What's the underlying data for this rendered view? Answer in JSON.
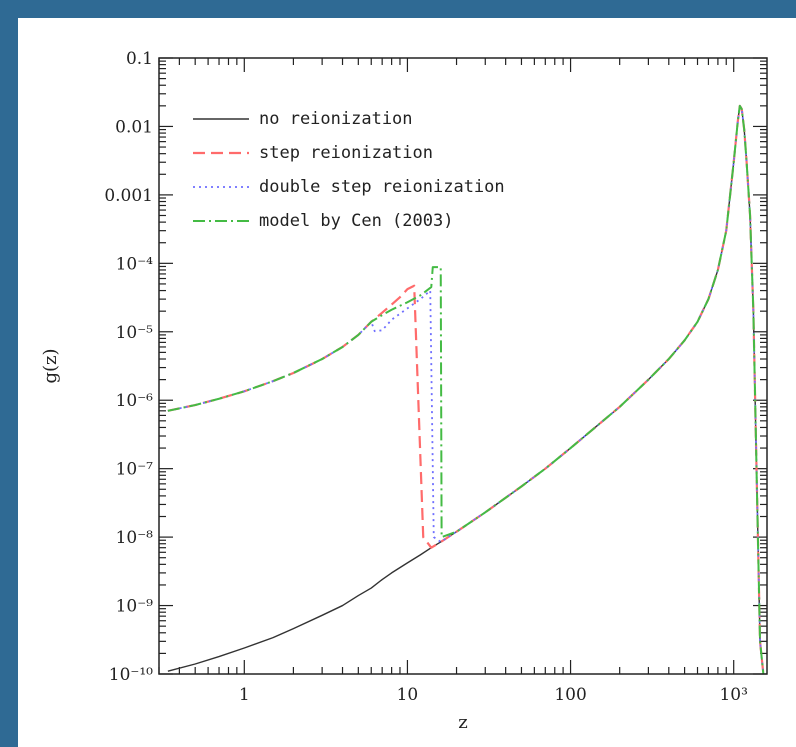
{
  "chart_data": {
    "type": "line",
    "xlabel": "z",
    "ylabel": "g(z)",
    "xscale": "log",
    "yscale": "log",
    "xlim": [
      0.3,
      1600
    ],
    "ylim": [
      1e-10,
      0.1
    ],
    "x_ticks": [
      {
        "value": 1,
        "label": "1"
      },
      {
        "value": 10,
        "label": "10"
      },
      {
        "value": 100,
        "label": "100"
      },
      {
        "value": 1000,
        "label": "10³"
      }
    ],
    "y_ticks": [
      {
        "value": 0.1,
        "label": "0.1"
      },
      {
        "value": 0.01,
        "label": "0.01"
      },
      {
        "value": 0.001,
        "label": "0.001"
      },
      {
        "value": 0.0001,
        "label": "10⁻⁴"
      },
      {
        "value": 1e-05,
        "label": "10⁻⁵"
      },
      {
        "value": 1e-06,
        "label": "10⁻⁶"
      },
      {
        "value": 1e-07,
        "label": "10⁻⁷"
      },
      {
        "value": 1e-08,
        "label": "10⁻⁸"
      },
      {
        "value": 1e-09,
        "label": "10⁻⁹"
      },
      {
        "value": 1e-10,
        "label": "10⁻¹⁰"
      }
    ],
    "legend_position": "top-left",
    "series": [
      {
        "name": "no reionization",
        "color": "#333333",
        "dash": "solid",
        "points": [
          [
            0.34,
            1.1e-10
          ],
          [
            0.5,
            1.4e-10
          ],
          [
            0.7,
            1.8e-10
          ],
          [
            1,
            2.4e-10
          ],
          [
            1.5,
            3.4e-10
          ],
          [
            2,
            4.6e-10
          ],
          [
            3,
            7.2e-10
          ],
          [
            4,
            1e-09
          ],
          [
            5,
            1.4e-09
          ],
          [
            6,
            1.8e-09
          ],
          [
            7,
            2.4e-09
          ],
          [
            8,
            3e-09
          ],
          [
            10,
            4.2e-09
          ],
          [
            12,
            5.5e-09
          ],
          [
            14,
            7e-09
          ],
          [
            16,
            8.5e-09
          ],
          [
            20,
            1.2e-08
          ],
          [
            30,
            2.3e-08
          ],
          [
            50,
            5.5e-08
          ],
          [
            70,
            1e-07
          ],
          [
            100,
            2e-07
          ],
          [
            150,
            4.5e-07
          ],
          [
            200,
            8e-07
          ],
          [
            300,
            2e-06
          ],
          [
            400,
            4e-06
          ],
          [
            500,
            7.5e-06
          ],
          [
            600,
            1.4e-05
          ],
          [
            700,
            3e-05
          ],
          [
            800,
            8e-05
          ],
          [
            900,
            0.0003
          ],
          [
            1000,
            0.003
          ],
          [
            1060,
            0.012
          ],
          [
            1090,
            0.02
          ],
          [
            1120,
            0.018
          ],
          [
            1160,
            0.009
          ],
          [
            1200,
            0.003
          ],
          [
            1260,
            0.0005
          ],
          [
            1320,
            2e-05
          ],
          [
            1380,
            1e-07
          ],
          [
            1450,
            3e-10
          ],
          [
            1520,
            1e-10
          ]
        ]
      },
      {
        "name": "step reionization",
        "color": "#ff6b6b",
        "dash": "dashed",
        "points": [
          [
            0.34,
            7e-07
          ],
          [
            0.5,
            8.5e-07
          ],
          [
            0.7,
            1.05e-06
          ],
          [
            1,
            1.35e-06
          ],
          [
            1.5,
            1.9e-06
          ],
          [
            2,
            2.5e-06
          ],
          [
            3,
            4e-06
          ],
          [
            4,
            6e-06
          ],
          [
            5,
            9e-06
          ],
          [
            6,
            1.4e-05
          ],
          [
            7,
            1.9e-05
          ],
          [
            8,
            2.5e-05
          ],
          [
            9,
            3.2e-05
          ],
          [
            10,
            4.2e-05
          ],
          [
            11,
            4.7e-05
          ],
          [
            12.5,
            1e-08
          ],
          [
            14,
            7e-09
          ],
          [
            16,
            8.5e-09
          ],
          [
            20,
            1.2e-08
          ],
          [
            30,
            2.3e-08
          ],
          [
            50,
            5.5e-08
          ],
          [
            70,
            1e-07
          ],
          [
            100,
            2e-07
          ],
          [
            150,
            4.5e-07
          ],
          [
            200,
            8e-07
          ],
          [
            300,
            2e-06
          ],
          [
            400,
            4e-06
          ],
          [
            500,
            7.5e-06
          ],
          [
            600,
            1.4e-05
          ],
          [
            700,
            3e-05
          ],
          [
            800,
            8e-05
          ],
          [
            900,
            0.0003
          ],
          [
            1000,
            0.003
          ],
          [
            1060,
            0.012
          ],
          [
            1090,
            0.02
          ],
          [
            1120,
            0.018
          ],
          [
            1160,
            0.009
          ],
          [
            1200,
            0.003
          ],
          [
            1260,
            0.0005
          ],
          [
            1320,
            2e-05
          ],
          [
            1380,
            1e-07
          ],
          [
            1450,
            3e-10
          ],
          [
            1520,
            1e-10
          ]
        ]
      },
      {
        "name": "double step reionization",
        "color": "#6f6fff",
        "dash": "dotted",
        "points": [
          [
            0.34,
            7e-07
          ],
          [
            0.5,
            8.5e-07
          ],
          [
            0.7,
            1.05e-06
          ],
          [
            1,
            1.35e-06
          ],
          [
            1.5,
            1.9e-06
          ],
          [
            2,
            2.5e-06
          ],
          [
            3,
            4e-06
          ],
          [
            4,
            6e-06
          ],
          [
            5,
            9e-06
          ],
          [
            6,
            1.4e-05
          ],
          [
            6.3,
            1.02e-05
          ],
          [
            7,
            1.05e-05
          ],
          [
            8,
            1.5e-05
          ],
          [
            10,
            2.2e-05
          ],
          [
            12,
            3e-05
          ],
          [
            13.8,
            4e-05
          ],
          [
            14.5,
            1e-08
          ],
          [
            16,
            8.5e-09
          ],
          [
            20,
            1.2e-08
          ],
          [
            30,
            2.3e-08
          ],
          [
            50,
            5.5e-08
          ],
          [
            70,
            1e-07
          ],
          [
            100,
            2e-07
          ],
          [
            150,
            4.5e-07
          ],
          [
            200,
            8e-07
          ],
          [
            300,
            2e-06
          ],
          [
            400,
            4e-06
          ],
          [
            500,
            7.5e-06
          ],
          [
            600,
            1.4e-05
          ],
          [
            700,
            3e-05
          ],
          [
            800,
            8e-05
          ],
          [
            900,
            0.0003
          ],
          [
            1000,
            0.003
          ],
          [
            1060,
            0.012
          ],
          [
            1090,
            0.02
          ],
          [
            1120,
            0.018
          ],
          [
            1160,
            0.009
          ],
          [
            1200,
            0.003
          ],
          [
            1260,
            0.0005
          ],
          [
            1320,
            2e-05
          ],
          [
            1380,
            1e-07
          ],
          [
            1450,
            3e-10
          ],
          [
            1520,
            1e-10
          ]
        ]
      },
      {
        "name": "model by Cen (2003)",
        "color": "#44bb44",
        "dash": "dashdot",
        "points": [
          [
            0.34,
            7e-07
          ],
          [
            0.5,
            8.5e-07
          ],
          [
            0.7,
            1.05e-06
          ],
          [
            1,
            1.35e-06
          ],
          [
            1.5,
            1.9e-06
          ],
          [
            2,
            2.5e-06
          ],
          [
            3,
            4e-06
          ],
          [
            4,
            6e-06
          ],
          [
            5,
            9e-06
          ],
          [
            6,
            1.4e-05
          ],
          [
            7,
            1.75e-05
          ],
          [
            8,
            2.1e-05
          ],
          [
            10,
            2.7e-05
          ],
          [
            12,
            3.4e-05
          ],
          [
            14,
            4.5e-05
          ],
          [
            14.3,
            8.8e-05
          ],
          [
            16,
            8.8e-05
          ],
          [
            16.2,
            1e-08
          ],
          [
            20,
            1.2e-08
          ],
          [
            30,
            2.3e-08
          ],
          [
            50,
            5.5e-08
          ],
          [
            70,
            1e-07
          ],
          [
            100,
            2e-07
          ],
          [
            150,
            4.5e-07
          ],
          [
            200,
            8e-07
          ],
          [
            300,
            2e-06
          ],
          [
            400,
            4e-06
          ],
          [
            500,
            7.5e-06
          ],
          [
            600,
            1.4e-05
          ],
          [
            700,
            3e-05
          ],
          [
            800,
            8e-05
          ],
          [
            900,
            0.0003
          ],
          [
            1000,
            0.003
          ],
          [
            1060,
            0.012
          ],
          [
            1090,
            0.02
          ],
          [
            1120,
            0.018
          ],
          [
            1160,
            0.009
          ],
          [
            1200,
            0.003
          ],
          [
            1260,
            0.0005
          ],
          [
            1320,
            2e-05
          ],
          [
            1380,
            1e-07
          ],
          [
            1450,
            3e-10
          ],
          [
            1520,
            1e-10
          ]
        ]
      }
    ]
  }
}
